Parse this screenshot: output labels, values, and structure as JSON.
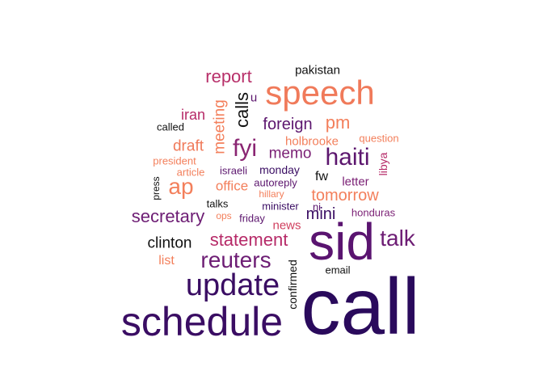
{
  "cloud": {
    "words": [
      {
        "text": "call",
        "color": "#2a0a5c"
      },
      {
        "text": "schedule",
        "color": "#3a0d63"
      },
      {
        "text": "sid",
        "color": "#5a1470"
      },
      {
        "text": "update",
        "color": "#3a0d63"
      },
      {
        "text": "speech",
        "color": "#f07a5a"
      },
      {
        "text": "haiti",
        "color": "#5c166e"
      },
      {
        "text": "reuters",
        "color": "#6d1d74"
      },
      {
        "text": "talk",
        "color": "#6d1d74"
      },
      {
        "text": "statement",
        "color": "#b62a68"
      },
      {
        "text": "fyi",
        "color": "#8a2572"
      },
      {
        "text": "ap",
        "color": "#f37f5b"
      },
      {
        "text": "secretary",
        "color": "#6d1d74"
      },
      {
        "text": "report",
        "color": "#b8306a"
      },
      {
        "text": "pm",
        "color": "#f37f5b"
      },
      {
        "text": "foreign",
        "color": "#5c166e"
      },
      {
        "text": "memo",
        "color": "#7a1f74"
      },
      {
        "text": "tomorrow",
        "color": "#f37f5b"
      },
      {
        "text": "mini",
        "color": "#3a0d63"
      },
      {
        "text": "calls",
        "color": "#111111"
      },
      {
        "text": "meeting",
        "color": "#f37f5b"
      },
      {
        "text": "draft",
        "color": "#f07a5a"
      },
      {
        "text": "clinton",
        "color": "#111111"
      },
      {
        "text": "iran",
        "color": "#b62a68"
      },
      {
        "text": "office",
        "color": "#f37f5b"
      },
      {
        "text": "news",
        "color": "#d0405f"
      },
      {
        "text": "holbrooke",
        "color": "#f37f5b"
      },
      {
        "text": "confirmed",
        "color": "#111111"
      },
      {
        "text": "fw",
        "color": "#111111"
      },
      {
        "text": "letter",
        "color": "#7a1f74"
      },
      {
        "text": "list",
        "color": "#f37f5b"
      },
      {
        "text": "pakistan",
        "color": "#111111"
      },
      {
        "text": "libya",
        "color": "#b62a68"
      },
      {
        "text": "monday",
        "color": "#3a0d63"
      },
      {
        "text": "question",
        "color": "#f37f5b"
      },
      {
        "text": "honduras",
        "color": "#7a1f74"
      },
      {
        "text": "u",
        "color": "#5c166e"
      },
      {
        "text": "email",
        "color": "#111111"
      },
      {
        "text": "israeli",
        "color": "#5c166e"
      },
      {
        "text": "president",
        "color": "#f37f5b"
      },
      {
        "text": "article",
        "color": "#f37f5b"
      },
      {
        "text": "called",
        "color": "#111111"
      },
      {
        "text": "autoreply",
        "color": "#5c166e"
      },
      {
        "text": "talks",
        "color": "#111111"
      },
      {
        "text": "minister",
        "color": "#3a0d63"
      },
      {
        "text": "hillary",
        "color": "#f37f5b"
      },
      {
        "text": "ni",
        "color": "#5c166e"
      },
      {
        "text": "ops",
        "color": "#f37f5b"
      },
      {
        "text": "friday",
        "color": "#5c166e"
      },
      {
        "text": "press",
        "color": "#111111"
      }
    ]
  }
}
